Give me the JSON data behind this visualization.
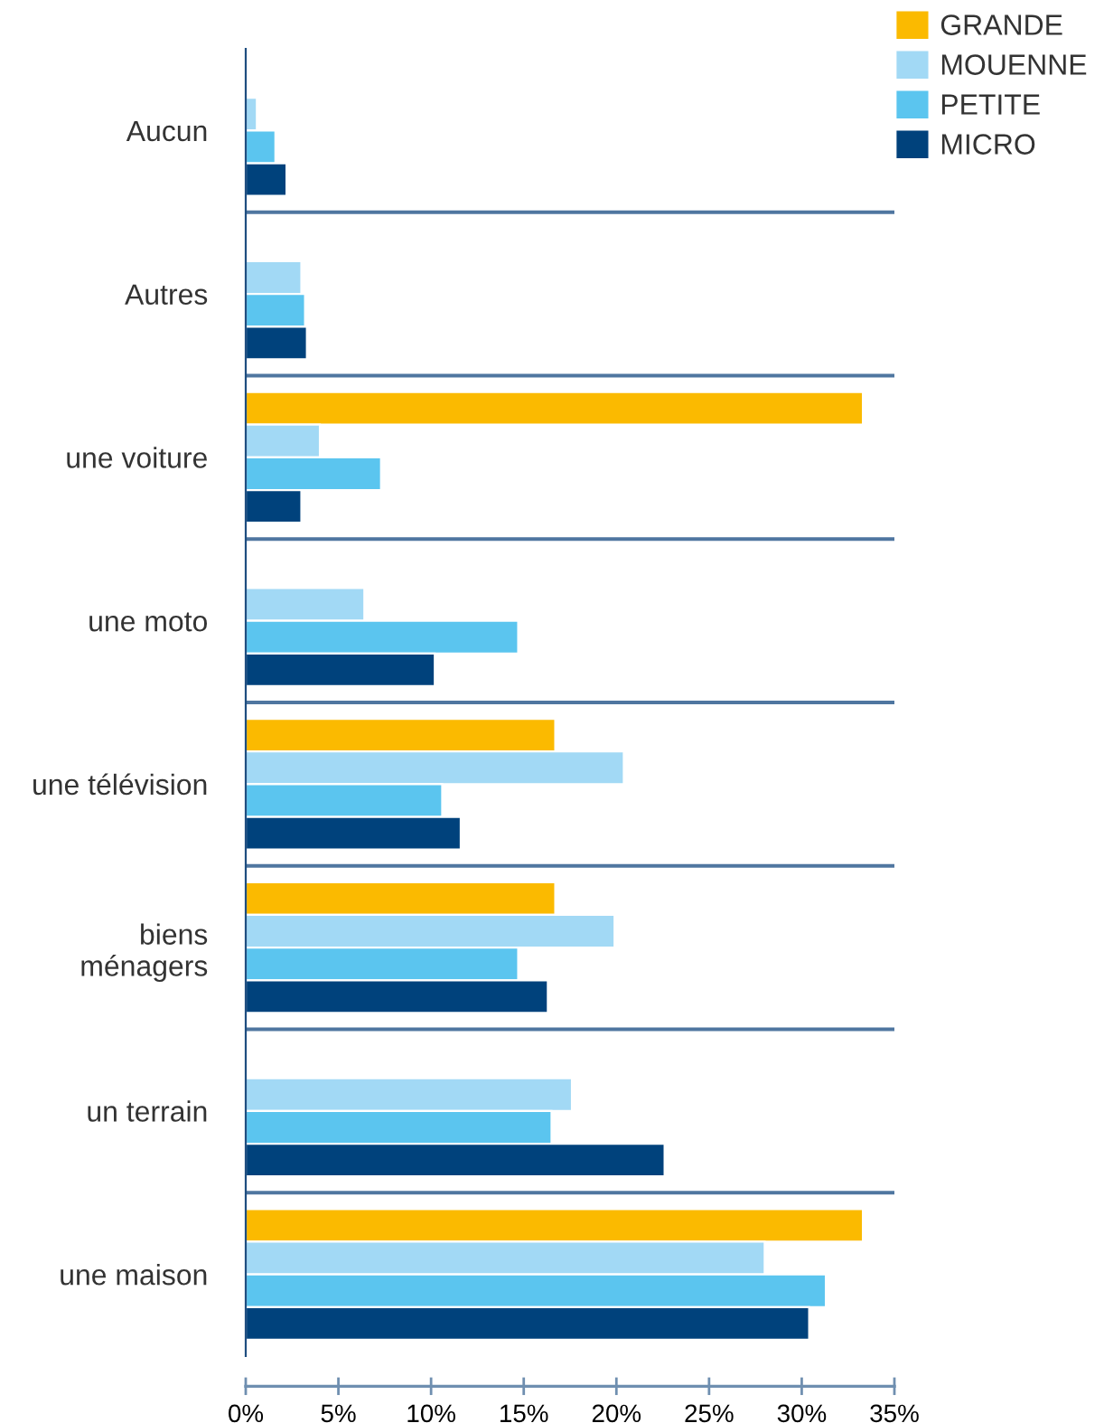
{
  "chart_data": {
    "type": "bar",
    "orientation": "horizontal",
    "categories": [
      "Aucun",
      "Autres",
      "une voiture",
      "une moto",
      "une télévision",
      "biens\nménagers",
      "un terrain",
      "une maison"
    ],
    "series": [
      {
        "name": "GRANDE",
        "color": "#fbba00",
        "values": [
          null,
          null,
          33.3,
          null,
          16.7,
          16.7,
          null,
          33.3
        ]
      },
      {
        "name": "MOUENNE",
        "color": "#a2d9f5",
        "values": [
          0.6,
          3.0,
          4.0,
          6.4,
          20.4,
          19.9,
          17.6,
          28.0
        ]
      },
      {
        "name": "PETITE",
        "color": "#5bc5ef",
        "values": [
          1.6,
          3.2,
          7.3,
          14.7,
          10.6,
          14.7,
          16.5,
          31.3
        ]
      },
      {
        "name": "MICRO",
        "color": "#00427c",
        "values": [
          2.2,
          3.3,
          3.0,
          10.2,
          11.6,
          16.3,
          22.6,
          30.4
        ]
      }
    ],
    "xlim": [
      0,
      35
    ],
    "xticks": [
      {
        "value": 0,
        "label": "0%"
      },
      {
        "value": 5,
        "label": "5%"
      },
      {
        "value": 10,
        "label": "10%"
      },
      {
        "value": 15,
        "label": "15%"
      },
      {
        "value": 20,
        "label": "20%"
      },
      {
        "value": 25,
        "label": "25%"
      },
      {
        "value": 30,
        "label": "30%"
      },
      {
        "value": 35,
        "label": "35%"
      }
    ],
    "grid": "y",
    "legend": "top right"
  }
}
